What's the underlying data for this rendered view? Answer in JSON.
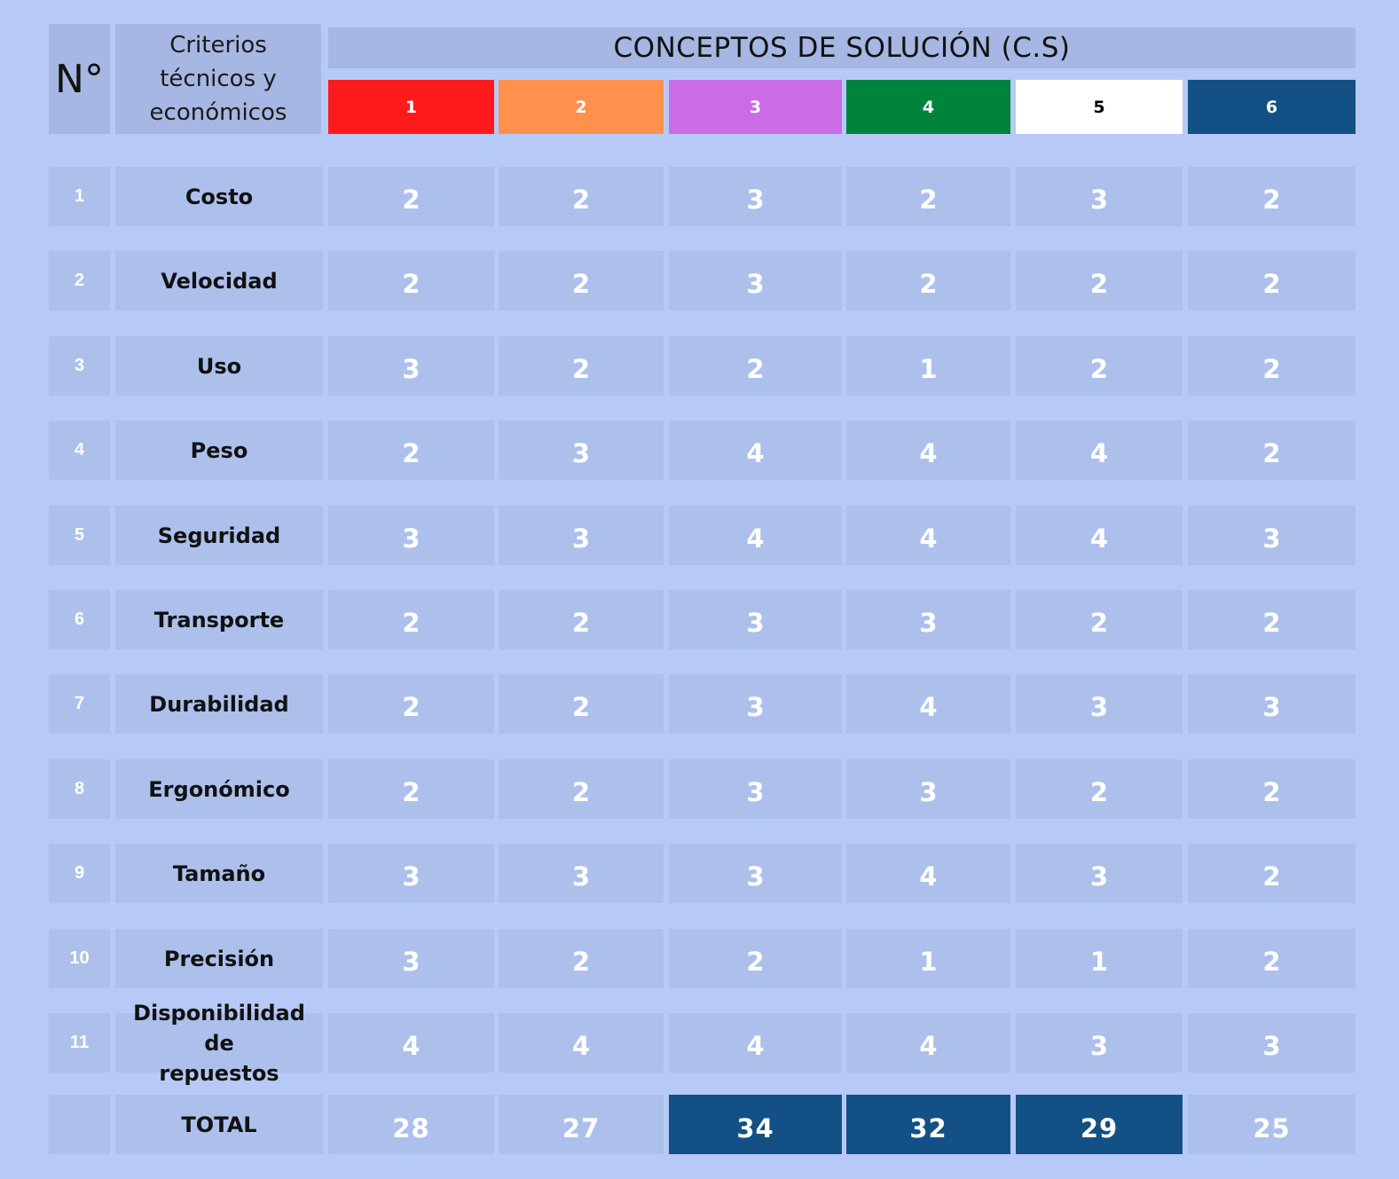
{
  "header": {
    "number_label": "N°",
    "criteria_label_lines": [
      "Criterios",
      "técnicos y",
      "económicos"
    ],
    "concepts_title": "CONCEPTOS DE SOLUCIÓN (C.S)"
  },
  "concepts": [
    {
      "label": "1",
      "color": "#ff1a1e",
      "text_color": "#ffffff"
    },
    {
      "label": "2",
      "color": "#ff914d",
      "text_color": "#ffffff"
    },
    {
      "label": "3",
      "color": "#cb6ce6",
      "text_color": "#ffffff"
    },
    {
      "label": "4",
      "color": "#00833a",
      "text_color": "#ffffff"
    },
    {
      "label": "5",
      "color": "#ffffff",
      "text_color": "#000000"
    },
    {
      "label": "6",
      "color": "#135085",
      "text_color": "#ffffff"
    }
  ],
  "rows": [
    {
      "num": "1",
      "criterion": "Costo",
      "scores": [
        "2",
        "2",
        "3",
        "2",
        "3",
        "2"
      ]
    },
    {
      "num": "2",
      "criterion": "Velocidad",
      "scores": [
        "2",
        "2",
        "3",
        "2",
        "2",
        "2"
      ]
    },
    {
      "num": "3",
      "criterion": "Uso",
      "scores": [
        "3",
        "2",
        "2",
        "1",
        "2",
        "2"
      ]
    },
    {
      "num": "4",
      "criterion": "Peso",
      "scores": [
        "2",
        "3",
        "4",
        "4",
        "4",
        "2"
      ]
    },
    {
      "num": "5",
      "criterion": "Seguridad",
      "scores": [
        "3",
        "3",
        "4",
        "4",
        "4",
        "3"
      ]
    },
    {
      "num": "6",
      "criterion": "Transporte",
      "scores": [
        "2",
        "2",
        "3",
        "3",
        "2",
        "2"
      ]
    },
    {
      "num": "7",
      "criterion": "Durabilidad",
      "scores": [
        "2",
        "2",
        "3",
        "4",
        "3",
        "3"
      ]
    },
    {
      "num": "8",
      "criterion": "Ergonómico",
      "scores": [
        "2",
        "2",
        "3",
        "3",
        "2",
        "2"
      ]
    },
    {
      "num": "9",
      "criterion": "Tamaño",
      "scores": [
        "3",
        "3",
        "3",
        "4",
        "3",
        "2"
      ]
    },
    {
      "num": "10",
      "criterion": "Precisión",
      "scores": [
        "3",
        "2",
        "2",
        "1",
        "1",
        "2"
      ]
    },
    {
      "num": "11",
      "criterion_lines": [
        "Disponibilidad de",
        "repuestos"
      ],
      "scores": [
        "4",
        "4",
        "4",
        "4",
        "3",
        "3"
      ]
    }
  ],
  "total": {
    "label": "TOTAL",
    "values": [
      "28",
      "27",
      "34",
      "32",
      "29",
      "25"
    ],
    "highlighted": [
      false,
      false,
      true,
      true,
      true,
      false
    ],
    "highlight_color": "#135085"
  }
}
